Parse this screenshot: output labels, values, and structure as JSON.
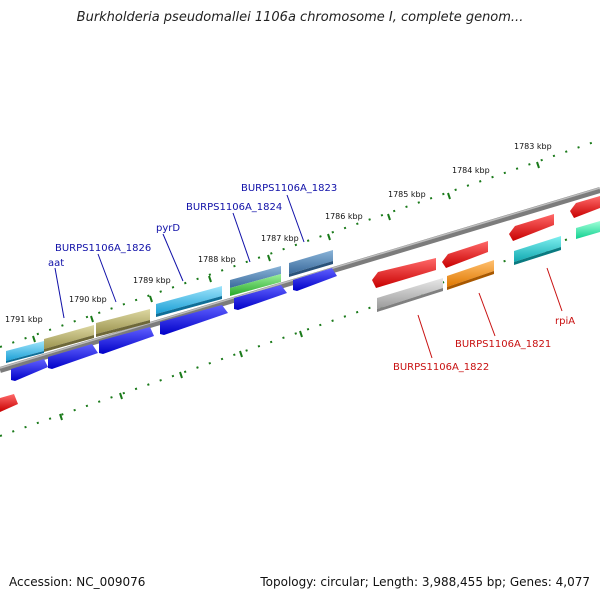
{
  "title": "Burkholderia pseudomallei 1106a chromosome I, complete genom...",
  "accession": "Accession: NC_009076",
  "topology": "Topology: circular; Length: 3,988,455 bp; Genes: 4,077",
  "kbp_labels": [
    "1791 kbp",
    "1790 kbp",
    "1789 kbp",
    "1788 kbp",
    "1787 kbp",
    "1786 kbp",
    "1785 kbp",
    "1784 kbp",
    "1783 kbp"
  ],
  "gene_labels_top": [
    "aat",
    "BURPS1106A_1826",
    "pyrD",
    "BURPS1106A_1824",
    "BURPS1106A_1823"
  ],
  "gene_labels_bottom": [
    "BURPS1106A_1822",
    "BURPS1106A_1821",
    "rpiA"
  ],
  "colors": {
    "cyan": "#29b6e6",
    "olive": "#b8b070",
    "blue": "#1a1ae6",
    "steel": "#4a7fb0",
    "green": "#3cc43c",
    "red": "#e61414",
    "gray": "#b4b4b4",
    "orange": "#f08c14",
    "teal": "#20c0c8",
    "mint": "#2ee6a0",
    "backbone": "#8a8a8a",
    "tick": "#1a7a1a"
  }
}
